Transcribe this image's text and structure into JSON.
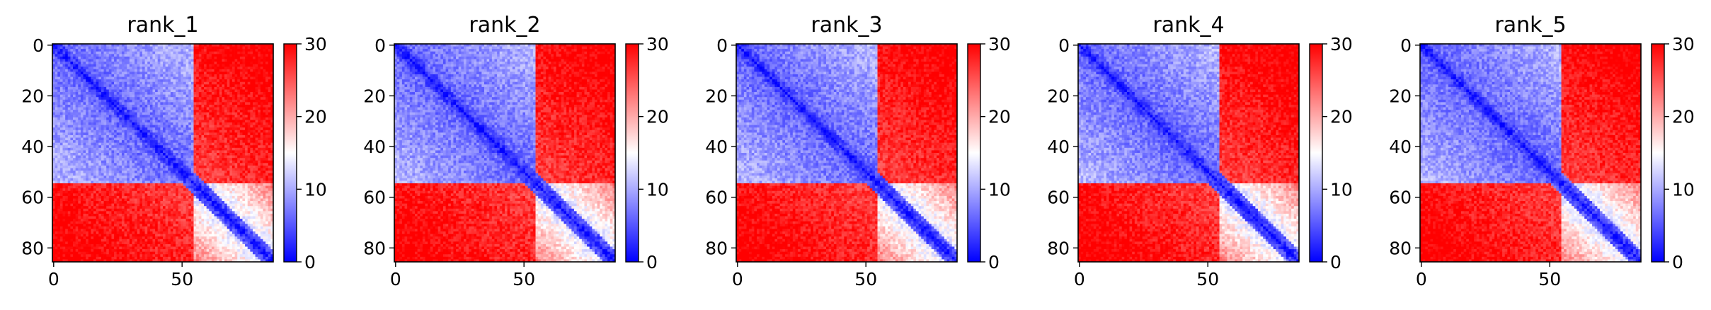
{
  "chart_data": [
    {
      "type": "heatmap",
      "title": "rank_1",
      "matrix_size": 86,
      "x_ticks": [
        "0",
        "50"
      ],
      "y_ticks": [
        "0",
        "20",
        "40",
        "60",
        "80"
      ],
      "colorbar": {
        "min": 0,
        "max": 30,
        "ticks": [
          "0",
          "10",
          "20",
          "30"
        ],
        "colormap": "bwr"
      },
      "structure": {
        "domains": [
          [
            0,
            55
          ],
          [
            55,
            86
          ]
        ],
        "diag_width": 4,
        "noise": 2.5,
        "seed": 11
      }
    },
    {
      "type": "heatmap",
      "title": "rank_2",
      "matrix_size": 86,
      "x_ticks": [
        "0",
        "50"
      ],
      "y_ticks": [
        "0",
        "20",
        "40",
        "60",
        "80"
      ],
      "colorbar": {
        "min": 0,
        "max": 30,
        "ticks": [
          "0",
          "10",
          "20",
          "30"
        ],
        "colormap": "bwr"
      },
      "structure": {
        "domains": [
          [
            0,
            55
          ],
          [
            55,
            86
          ]
        ],
        "diag_width": 4,
        "noise": 2.5,
        "seed": 23
      }
    },
    {
      "type": "heatmap",
      "title": "rank_3",
      "matrix_size": 86,
      "x_ticks": [
        "0",
        "50"
      ],
      "y_ticks": [
        "0",
        "20",
        "40",
        "60",
        "80"
      ],
      "colorbar": {
        "min": 0,
        "max": 30,
        "ticks": [
          "0",
          "10",
          "20",
          "30"
        ],
        "colormap": "bwr"
      },
      "structure": {
        "domains": [
          [
            0,
            55
          ],
          [
            55,
            86
          ]
        ],
        "diag_width": 4,
        "noise": 2.5,
        "seed": 37
      }
    },
    {
      "type": "heatmap",
      "title": "rank_4",
      "matrix_size": 86,
      "x_ticks": [
        "0",
        "50"
      ],
      "y_ticks": [
        "0",
        "20",
        "40",
        "60",
        "80"
      ],
      "colorbar": {
        "min": 0,
        "max": 30,
        "ticks": [
          "0",
          "10",
          "20",
          "30"
        ],
        "colormap": "bwr"
      },
      "structure": {
        "domains": [
          [
            0,
            55
          ],
          [
            55,
            86
          ]
        ],
        "diag_width": 4,
        "noise": 2.5,
        "seed": 41
      }
    },
    {
      "type": "heatmap",
      "title": "rank_5",
      "matrix_size": 86,
      "x_ticks": [
        "0",
        "50"
      ],
      "y_ticks": [
        "0",
        "20",
        "40",
        "60",
        "80"
      ],
      "colorbar": {
        "min": 0,
        "max": 30,
        "ticks": [
          "0",
          "10",
          "20",
          "30"
        ],
        "colormap": "bwr"
      },
      "structure": {
        "domains": [
          [
            0,
            55
          ],
          [
            55,
            86
          ]
        ],
        "diag_width": 4,
        "noise": 2.5,
        "seed": 53
      }
    }
  ],
  "colors": {
    "low": "#0000ff",
    "mid": "#ffffff",
    "high": "#ff0000",
    "axis": "#000000"
  }
}
